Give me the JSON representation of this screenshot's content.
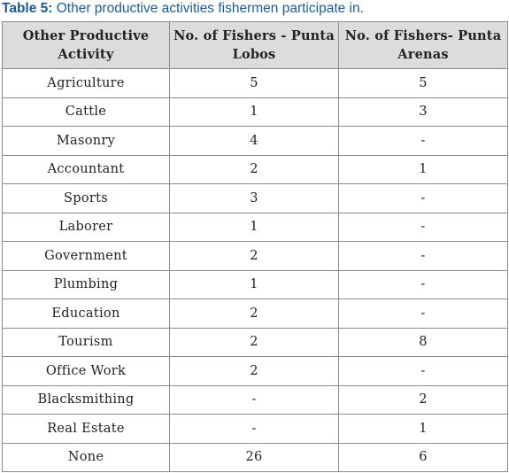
{
  "caption": {
    "label": "Table 5:",
    "text": "Other productive activities fishermen participate in."
  },
  "table": {
    "headers": [
      "Other Productive Activity",
      "No. of Fishers - Punta Lobos",
      "No. of Fishers- Punta Arenas"
    ],
    "rows": [
      [
        "Agriculture",
        "5",
        "5"
      ],
      [
        "Cattle",
        "1",
        "3"
      ],
      [
        "Masonry",
        "4",
        "-"
      ],
      [
        "Accountant",
        "2",
        "1"
      ],
      [
        "Sports",
        "3",
        "-"
      ],
      [
        "Laborer",
        "1",
        "-"
      ],
      [
        "Government",
        "2",
        "-"
      ],
      [
        "Plumbing",
        "1",
        "-"
      ],
      [
        "Education",
        "2",
        "-"
      ],
      [
        "Tourism",
        "2",
        "8"
      ],
      [
        "Office Work",
        "2",
        "-"
      ],
      [
        "Blacksmithing",
        "-",
        "2"
      ],
      [
        "Real Estate",
        "-",
        "1"
      ],
      [
        "None",
        "26",
        "6"
      ]
    ]
  }
}
